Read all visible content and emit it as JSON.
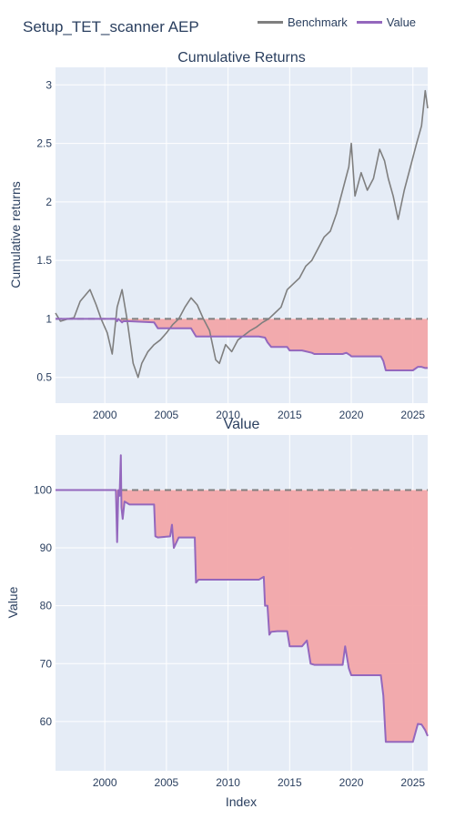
{
  "figure": {
    "title": "Setup_TET_scanner AEP",
    "legend": [
      {
        "label": "Benchmark",
        "color": "#7f7f7f"
      },
      {
        "label": "Value",
        "color": "#9467bd"
      }
    ]
  },
  "colors": {
    "plot_bg": "#e5ecf6",
    "grid": "#ffffff",
    "benchmark": "#7f7f7f",
    "value": "#9467bd",
    "drawdown_fill": "#f2a7a9",
    "baseline_dash": "#808080",
    "text": "#2a3f5f"
  },
  "chart_data": [
    {
      "type": "line",
      "title": "Cumulative Returns",
      "xlabel": "",
      "ylabel": "Cumulative returns",
      "xlim": [
        1996.0,
        2026.2
      ],
      "ylim": [
        0.28,
        3.15
      ],
      "yticks": [
        0.5,
        1,
        1.5,
        2,
        2.5,
        3
      ],
      "ytick_labels": [
        "0.5",
        "1",
        "1.5",
        "2",
        "2.5",
        "3"
      ],
      "baseline": 1,
      "grid": true,
      "series": [
        {
          "name": "Benchmark",
          "x": [
            1996.0,
            1996.4,
            1997.0,
            1997.5,
            1998.0,
            1998.8,
            1999.3,
            1999.7,
            2000.2,
            2000.6,
            2001.0,
            2001.4,
            2001.8,
            2002.3,
            2002.7,
            2003.0,
            2003.5,
            2004.0,
            2004.5,
            2005.0,
            2005.5,
            2006.0,
            2006.5,
            2007.0,
            2007.5,
            2008.0,
            2008.5,
            2009.0,
            2009.3,
            2009.8,
            2010.3,
            2010.8,
            2011.3,
            2011.8,
            2012.3,
            2012.8,
            2013.3,
            2013.8,
            2014.3,
            2014.8,
            2015.3,
            2015.8,
            2016.3,
            2016.8,
            2017.3,
            2017.8,
            2018.3,
            2018.8,
            2019.3,
            2019.8,
            2020.0,
            2020.3,
            2020.8,
            2021.3,
            2021.8,
            2022.3,
            2022.7,
            2023.0,
            2023.4,
            2023.8,
            2024.3,
            2024.8,
            2025.3,
            2025.7,
            2026.0,
            2026.2
          ],
          "values": [
            1.05,
            0.98,
            1.0,
            1.01,
            1.15,
            1.25,
            1.12,
            1.0,
            0.88,
            0.7,
            1.1,
            1.25,
            1.0,
            0.62,
            0.5,
            0.62,
            0.72,
            0.78,
            0.82,
            0.88,
            0.95,
            1.0,
            1.1,
            1.18,
            1.12,
            1.0,
            0.9,
            0.65,
            0.62,
            0.78,
            0.72,
            0.82,
            0.86,
            0.9,
            0.93,
            0.97,
            1.0,
            1.05,
            1.1,
            1.25,
            1.3,
            1.35,
            1.45,
            1.5,
            1.6,
            1.7,
            1.75,
            1.9,
            2.1,
            2.3,
            2.5,
            2.05,
            2.25,
            2.1,
            2.2,
            2.45,
            2.35,
            2.2,
            2.05,
            1.85,
            2.1,
            2.3,
            2.5,
            2.65,
            2.95,
            2.8
          ]
        },
        {
          "name": "Value",
          "x": [
            1996.0,
            2000.9,
            2001.0,
            2001.1,
            2001.4,
            2001.5,
            2002.0,
            2004.0,
            2004.3,
            2007.0,
            2007.4,
            2012.5,
            2013.0,
            2013.2,
            2013.5,
            2014.8,
            2015.0,
            2016.0,
            2016.8,
            2017.0,
            2019.3,
            2019.6,
            2019.9,
            2020.0,
            2022.4,
            2022.6,
            2022.8,
            2025.0,
            2025.4,
            2025.7,
            2026.0,
            2026.2
          ],
          "values": [
            1.0,
            1.0,
            0.98,
            1.0,
            0.97,
            0.98,
            0.98,
            0.97,
            0.92,
            0.92,
            0.85,
            0.85,
            0.84,
            0.8,
            0.76,
            0.76,
            0.73,
            0.73,
            0.71,
            0.7,
            0.7,
            0.71,
            0.69,
            0.68,
            0.68,
            0.64,
            0.56,
            0.56,
            0.59,
            0.59,
            0.58,
            0.58
          ]
        }
      ]
    },
    {
      "type": "line",
      "title": "Value",
      "xlabel": "Index",
      "ylabel": "Value",
      "xlim": [
        1996.0,
        2026.2
      ],
      "ylim": [
        51.5,
        109.5
      ],
      "yticks": [
        60,
        70,
        80,
        90,
        100
      ],
      "ytick_labels": [
        "60",
        "70",
        "80",
        "90",
        "100"
      ],
      "xticks": [
        2000,
        2005,
        2010,
        2015,
        2020,
        2025
      ],
      "xtick_labels": [
        "2000",
        "2005",
        "2010",
        "2015",
        "2020",
        "2025"
      ],
      "baseline": 100,
      "grid": true,
      "series": [
        {
          "name": "Value",
          "x": [
            1996.0,
            2000.9,
            2001.0,
            2001.1,
            2001.2,
            2001.3,
            2001.35,
            2001.45,
            2001.6,
            2002.0,
            2004.0,
            2004.1,
            2004.3,
            2005.3,
            2005.45,
            2005.6,
            2006.0,
            2007.3,
            2007.4,
            2007.6,
            2012.5,
            2012.9,
            2013.0,
            2013.2,
            2013.35,
            2013.5,
            2014.0,
            2014.8,
            2015.0,
            2016.0,
            2016.4,
            2016.7,
            2017.0,
            2018.0,
            2019.3,
            2019.5,
            2019.8,
            2020.0,
            2022.4,
            2022.6,
            2022.8,
            2023.0,
            2025.0,
            2025.4,
            2025.7,
            2026.0,
            2026.2
          ],
          "values": [
            100,
            100,
            91,
            100,
            99,
            106,
            97,
            95,
            98,
            97.5,
            97.5,
            92,
            91.8,
            92,
            94,
            90,
            91.8,
            91.8,
            84,
            84.5,
            84.5,
            85,
            80,
            80,
            75,
            75.5,
            75.6,
            75.6,
            73,
            73,
            74,
            70,
            69.8,
            69.8,
            69.8,
            73,
            69.2,
            68,
            68,
            64.5,
            56.5,
            56.5,
            56.5,
            59.6,
            59.5,
            58.5,
            57.5
          ]
        }
      ]
    }
  ]
}
